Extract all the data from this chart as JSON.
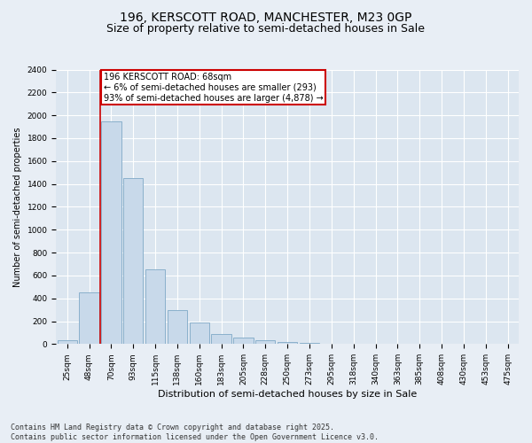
{
  "title": "196, KERSCOTT ROAD, MANCHESTER, M23 0GP",
  "subtitle": "Size of property relative to semi-detached houses in Sale",
  "xlabel": "Distribution of semi-detached houses by size in Sale",
  "ylabel": "Number of semi-detached properties",
  "categories": [
    "25sqm",
    "48sqm",
    "70sqm",
    "93sqm",
    "115sqm",
    "138sqm",
    "160sqm",
    "183sqm",
    "205sqm",
    "228sqm",
    "250sqm",
    "273sqm",
    "295sqm",
    "318sqm",
    "340sqm",
    "363sqm",
    "385sqm",
    "408sqm",
    "430sqm",
    "453sqm",
    "475sqm"
  ],
  "values": [
    30,
    450,
    1950,
    1450,
    650,
    300,
    185,
    90,
    55,
    35,
    20,
    10,
    5,
    2,
    1,
    0,
    0,
    0,
    0,
    0,
    0
  ],
  "bar_color": "#c8d9ea",
  "bar_edge_color": "#8ab0cc",
  "property_line_color": "#cc0000",
  "property_line_index": 1.5,
  "annotation_text": "196 KERSCOTT ROAD: 68sqm\n← 6% of semi-detached houses are smaller (293)\n93% of semi-detached houses are larger (4,878) →",
  "annotation_box_color": "#cc0000",
  "ylim": [
    0,
    2400
  ],
  "yticks": [
    0,
    200,
    400,
    600,
    800,
    1000,
    1200,
    1400,
    1600,
    1800,
    2000,
    2200,
    2400
  ],
  "footer": "Contains HM Land Registry data © Crown copyright and database right 2025.\nContains public sector information licensed under the Open Government Licence v3.0.",
  "background_color": "#e8eef5",
  "plot_background_color": "#dce6f0",
  "grid_color": "#ffffff",
  "title_fontsize": 10,
  "subtitle_fontsize": 9,
  "xlabel_fontsize": 8,
  "ylabel_fontsize": 7,
  "tick_fontsize": 6.5,
  "annotation_fontsize": 7,
  "footer_fontsize": 6
}
